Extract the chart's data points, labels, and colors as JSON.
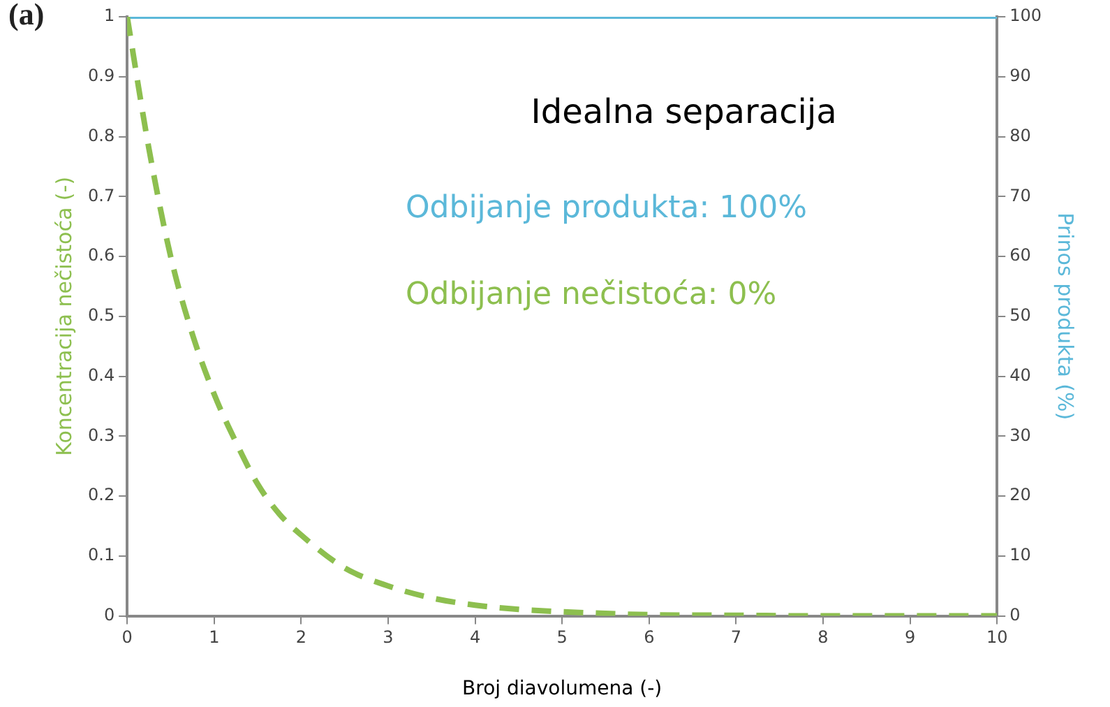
{
  "chart_data": {
    "type": "line",
    "xlabel": "Broj diavolumena (-)",
    "ylabel": "Koncentracija nečistoća (-)",
    "y2label": "Prinos produkta (%)",
    "annotations": [
      "(a)",
      "Idealna separacija",
      "Odbijanje produkta: 100%",
      "Odbijanje nečistoća: 0%"
    ],
    "series": [
      {
        "color": "#8dbf4f",
        "line_style": "dashed",
        "x": [
          0,
          0.25,
          0.5,
          0.75,
          1,
          1.25,
          1.5,
          1.75,
          2,
          2.5,
          3,
          3.5,
          4,
          4.5,
          5,
          6,
          7,
          8,
          9,
          10
        ],
        "values": [
          1,
          0.78,
          0.6,
          0.47,
          0.37,
          0.29,
          0.22,
          0.17,
          0.135,
          0.08,
          0.05,
          0.03,
          0.018,
          0.011,
          0.007,
          0.002,
          0.001,
          0,
          0,
          0
        ]
      },
      {
        "color": "#5bb8d9",
        "line_style": "solid",
        "axis": "y2",
        "x": [
          0,
          10
        ],
        "values": [
          100,
          100
        ]
      }
    ],
    "xlim": [
      0,
      10
    ],
    "xticks": [
      0,
      1,
      2,
      3,
      4,
      5,
      6,
      7,
      8,
      9,
      10
    ],
    "ylim": [
      0,
      1
    ],
    "yticks": [
      0,
      0.1,
      0.2,
      0.3,
      0.4,
      0.5,
      0.6,
      0.7,
      0.8,
      0.9,
      1
    ],
    "y2lim": [
      0,
      100
    ],
    "y2ticks": [
      0,
      10,
      20,
      30,
      40,
      50,
      60,
      70,
      80,
      90,
      100
    ],
    "grid": false,
    "legend": false,
    "marker": "none"
  }
}
